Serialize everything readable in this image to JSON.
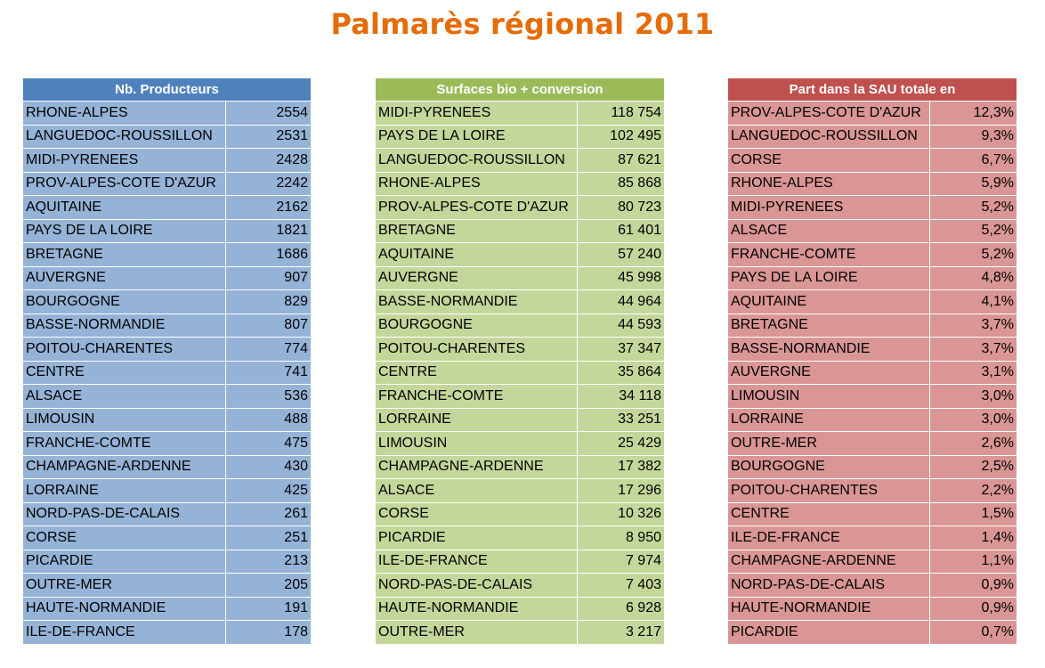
{
  "title": "Palmarès régional 2011",
  "colors": {
    "title": "#E46C0A",
    "producers_header": "#4F81BD",
    "producers_cells": "#95B3D7",
    "surfaces_header": "#9BBB59",
    "surfaces_cells": "#C4D79B",
    "share_header": "#C0504D",
    "share_cells": "#DA9694"
  },
  "tables": [
    {
      "header": "Nb. Producteurs",
      "rows": [
        {
          "region": "RHONE-ALPES",
          "value": "2554"
        },
        {
          "region": "LANGUEDOC-ROUSSILLON",
          "value": "2531"
        },
        {
          "region": "MIDI-PYRENEES",
          "value": "2428"
        },
        {
          "region": "PROV-ALPES-COTE D'AZUR",
          "value": "2242"
        },
        {
          "region": "AQUITAINE",
          "value": "2162"
        },
        {
          "region": "PAYS DE LA LOIRE",
          "value": "1821"
        },
        {
          "region": "BRETAGNE",
          "value": "1686"
        },
        {
          "region": "AUVERGNE",
          "value": "907"
        },
        {
          "region": "BOURGOGNE",
          "value": "829"
        },
        {
          "region": "BASSE-NORMANDIE",
          "value": "807"
        },
        {
          "region": "POITOU-CHARENTES",
          "value": "774"
        },
        {
          "region": "CENTRE",
          "value": "741"
        },
        {
          "region": "ALSACE",
          "value": "536"
        },
        {
          "region": "LIMOUSIN",
          "value": "488"
        },
        {
          "region": "FRANCHE-COMTE",
          "value": "475"
        },
        {
          "region": "CHAMPAGNE-ARDENNE",
          "value": "430"
        },
        {
          "region": "LORRAINE",
          "value": "425"
        },
        {
          "region": "NORD-PAS-DE-CALAIS",
          "value": "261"
        },
        {
          "region": "CORSE",
          "value": "251"
        },
        {
          "region": "PICARDIE",
          "value": "213"
        },
        {
          "region": "OUTRE-MER",
          "value": "205"
        },
        {
          "region": "HAUTE-NORMANDIE",
          "value": "191"
        },
        {
          "region": "ILE-DE-FRANCE",
          "value": "178"
        }
      ]
    },
    {
      "header": "Surfaces bio + conversion",
      "rows": [
        {
          "region": "MIDI-PYRENEES",
          "value": "118 754"
        },
        {
          "region": "PAYS DE LA LOIRE",
          "value": "102 495"
        },
        {
          "region": "LANGUEDOC-ROUSSILLON",
          "value": "87 621"
        },
        {
          "region": "RHONE-ALPES",
          "value": "85 868"
        },
        {
          "region": "PROV-ALPES-COTE D'AZUR",
          "value": "80 723"
        },
        {
          "region": "BRETAGNE",
          "value": "61 401"
        },
        {
          "region": "AQUITAINE",
          "value": "57 240"
        },
        {
          "region": "AUVERGNE",
          "value": "45 998"
        },
        {
          "region": "BASSE-NORMANDIE",
          "value": "44 964"
        },
        {
          "region": "BOURGOGNE",
          "value": "44 593"
        },
        {
          "region": "POITOU-CHARENTES",
          "value": "37 347"
        },
        {
          "region": "CENTRE",
          "value": "35 864"
        },
        {
          "region": "FRANCHE-COMTE",
          "value": "34 118"
        },
        {
          "region": "LORRAINE",
          "value": "33 251"
        },
        {
          "region": "LIMOUSIN",
          "value": "25 429"
        },
        {
          "region": "CHAMPAGNE-ARDENNE",
          "value": "17 382"
        },
        {
          "region": "ALSACE",
          "value": "17 296"
        },
        {
          "region": "CORSE",
          "value": "10 326"
        },
        {
          "region": "PICARDIE",
          "value": "8 950"
        },
        {
          "region": "ILE-DE-FRANCE",
          "value": "7 974"
        },
        {
          "region": "NORD-PAS-DE-CALAIS",
          "value": "7 403"
        },
        {
          "region": "HAUTE-NORMANDIE",
          "value": "6 928"
        },
        {
          "region": "OUTRE-MER",
          "value": "3 217"
        }
      ]
    },
    {
      "header": "Part dans la SAU totale en",
      "rows": [
        {
          "region": "PROV-ALPES-COTE D'AZUR",
          "value": "12,3%"
        },
        {
          "region": "LANGUEDOC-ROUSSILLON",
          "value": "9,3%"
        },
        {
          "region": "CORSE",
          "value": "6,7%"
        },
        {
          "region": "RHONE-ALPES",
          "value": "5,9%"
        },
        {
          "region": "MIDI-PYRENEES",
          "value": "5,2%"
        },
        {
          "region": "ALSACE",
          "value": "5,2%"
        },
        {
          "region": "FRANCHE-COMTE",
          "value": "5,2%"
        },
        {
          "region": "PAYS DE LA LOIRE",
          "value": "4,8%"
        },
        {
          "region": "AQUITAINE",
          "value": "4,1%"
        },
        {
          "region": "BRETAGNE",
          "value": "3,7%"
        },
        {
          "region": "BASSE-NORMANDIE",
          "value": "3,7%"
        },
        {
          "region": "AUVERGNE",
          "value": "3,1%"
        },
        {
          "region": "LIMOUSIN",
          "value": "3,0%"
        },
        {
          "region": "LORRAINE",
          "value": "3,0%"
        },
        {
          "region": "OUTRE-MER",
          "value": "2,6%"
        },
        {
          "region": "BOURGOGNE",
          "value": "2,5%"
        },
        {
          "region": "POITOU-CHARENTES",
          "value": "2,2%"
        },
        {
          "region": "CENTRE",
          "value": "1,5%"
        },
        {
          "region": "ILE-DE-FRANCE",
          "value": "1,4%"
        },
        {
          "region": "CHAMPAGNE-ARDENNE",
          "value": "1,1%"
        },
        {
          "region": "NORD-PAS-DE-CALAIS",
          "value": "0,9%"
        },
        {
          "region": "HAUTE-NORMANDIE",
          "value": "0,9%"
        },
        {
          "region": "PICARDIE",
          "value": "0,7%"
        }
      ]
    }
  ]
}
